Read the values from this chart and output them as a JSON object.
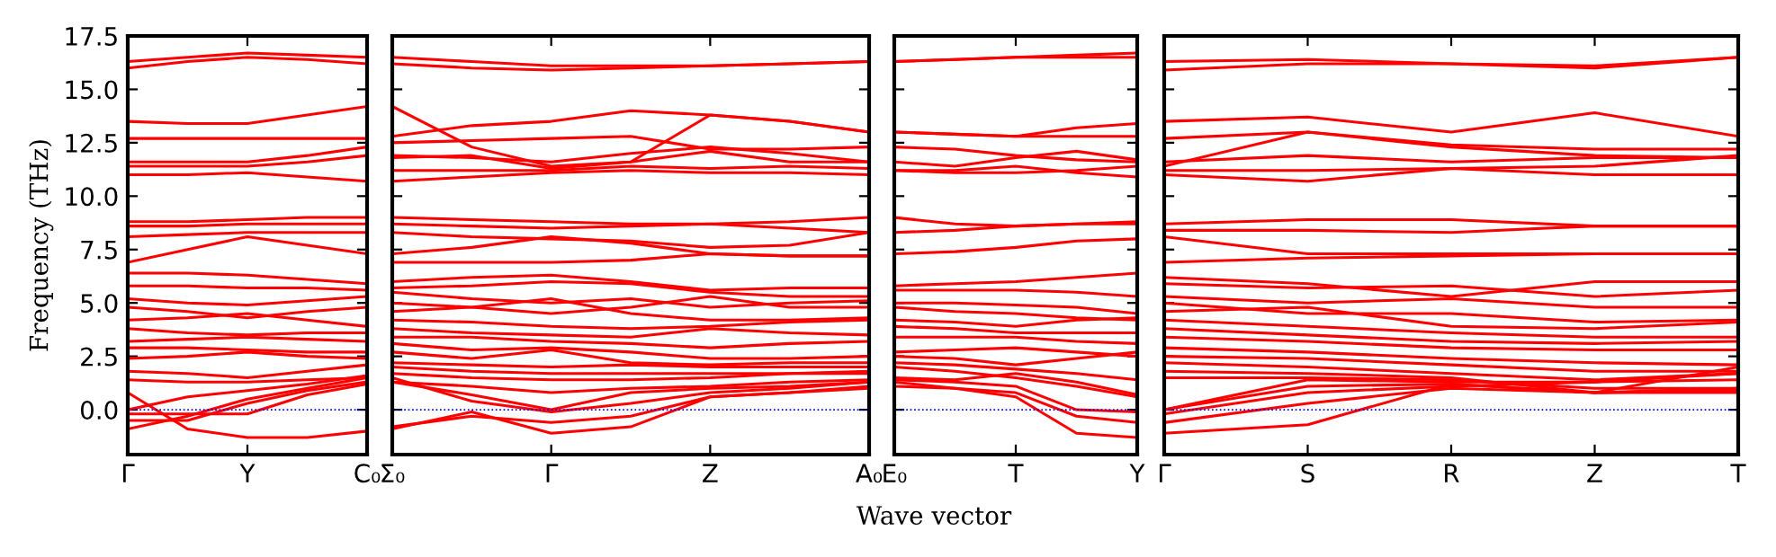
{
  "chart_data": [
    {
      "type": "line",
      "ylabel": "Frequency (THz)",
      "categories": [
        "Γ",
        null,
        "Y",
        null,
        "C₀"
      ],
      "ylim": [
        -2.1,
        17.5
      ],
      "yticks": [
        {
          "value": 0,
          "label": "0.0"
        },
        2.5,
        {
          "value": 5,
          "label": "5.0"
        },
        7.5,
        {
          "value": 10,
          "label": "10.0"
        },
        12.5,
        {
          "value": 15,
          "label": "15.0"
        },
        17.5
      ],
      "grid": false,
      "legend": false,
      "ref_lines": [
        {
          "axis": "y",
          "value": 0,
          "color": "#0000ff",
          "line_style": "dotted"
        }
      ],
      "series": [
        {
          "color": "#ff0000",
          "values": [
            16.3,
            16.5,
            16.7,
            16.6,
            16.5
          ]
        },
        {
          "color": "#ff0000",
          "values": [
            16.0,
            16.3,
            16.5,
            16.4,
            16.2
          ]
        },
        {
          "color": "#ff0000",
          "values": [
            13.5,
            13.4,
            13.4,
            13.8,
            14.2
          ]
        },
        {
          "color": "#ff0000",
          "values": [
            12.7,
            12.7,
            12.7,
            12.7,
            12.7
          ]
        },
        {
          "color": "#ff0000",
          "values": [
            11.6,
            11.6,
            11.6,
            11.9,
            12.3
          ]
        },
        {
          "color": "#ff0000",
          "values": [
            11.4,
            11.4,
            11.4,
            11.6,
            11.9
          ]
        },
        {
          "color": "#ff0000",
          "values": [
            11.0,
            11.0,
            11.1,
            10.9,
            10.7
          ]
        },
        {
          "color": "#ff0000",
          "values": [
            8.8,
            8.8,
            8.9,
            9.0,
            9.0
          ]
        },
        {
          "color": "#ff0000",
          "values": [
            8.6,
            8.6,
            8.7,
            8.7,
            8.7
          ]
        },
        {
          "color": "#ff0000",
          "values": [
            8.1,
            8.2,
            8.3,
            8.3,
            8.3
          ]
        },
        {
          "color": "#ff0000",
          "values": [
            6.9,
            7.5,
            8.1,
            7.7,
            7.3
          ]
        },
        {
          "color": "#ff0000",
          "values": [
            6.4,
            6.4,
            6.3,
            6.1,
            5.9
          ]
        },
        {
          "color": "#ff0000",
          "values": [
            5.8,
            5.8,
            5.7,
            5.7,
            5.6
          ]
        },
        {
          "color": "#ff0000",
          "values": [
            5.2,
            5.0,
            4.9,
            5.1,
            5.3
          ]
        },
        {
          "color": "#ff0000",
          "values": [
            4.8,
            4.6,
            4.3,
            4.6,
            4.8
          ]
        },
        {
          "color": "#ff0000",
          "values": [
            4.2,
            4.3,
            4.5,
            4.2,
            3.9
          ]
        },
        {
          "color": "#ff0000",
          "values": [
            3.8,
            3.6,
            3.5,
            3.6,
            3.6
          ]
        },
        {
          "color": "#ff0000",
          "values": [
            3.2,
            3.3,
            3.4,
            3.3,
            3.2
          ]
        },
        {
          "color": "#ff0000",
          "values": [
            2.9,
            2.9,
            2.8,
            2.7,
            2.7
          ]
        },
        {
          "color": "#ff0000",
          "values": [
            2.4,
            2.5,
            2.7,
            2.5,
            2.4
          ]
        },
        {
          "color": "#ff0000",
          "values": [
            1.8,
            1.7,
            1.5,
            1.8,
            2.1
          ]
        },
        {
          "color": "#ff0000",
          "values": [
            1.4,
            1.3,
            1.3,
            1.4,
            1.5
          ]
        },
        {
          "color": "#ff0000",
          "values": [
            0.8,
            -0.9,
            -1.3,
            -1.3,
            -1.0
          ]
        },
        {
          "color": "#ff0000",
          "values": [
            -0.2,
            -0.2,
            -0.2,
            0.7,
            1.2
          ]
        },
        {
          "color": "#ff0000",
          "values": [
            -0.5,
            -0.5,
            0.3,
            0.9,
            1.3
          ]
        },
        {
          "color": "#ff0000",
          "values": [
            -0.9,
            -0.3,
            0.5,
            1.0,
            1.5
          ]
        },
        {
          "color": "#ff0000",
          "values": [
            0.0,
            0.6,
            0.9,
            1.2,
            1.6
          ]
        }
      ]
    },
    {
      "type": "line",
      "categories": [
        "Σ₀",
        null,
        "Γ",
        null,
        "Z",
        null,
        "A₀"
      ],
      "ylim": [
        -2.1,
        17.5
      ],
      "yticks": [
        0,
        2.5,
        5,
        7.5,
        10,
        12.5,
        15,
        17.5
      ],
      "tick_labels": "x",
      "grid": false,
      "legend": false,
      "ref_lines": [
        {
          "axis": "y",
          "value": 0,
          "color": "#0000ff",
          "line_style": "dotted"
        }
      ],
      "series": [
        {
          "color": "#ff0000",
          "values": [
            16.5,
            16.3,
            16.1,
            16.1,
            16.1,
            16.2,
            16.3
          ]
        },
        {
          "color": "#ff0000",
          "values": [
            16.2,
            16.0,
            15.9,
            16.0,
            16.1,
            16.2,
            16.3
          ]
        },
        {
          "color": "#ff0000",
          "values": [
            14.2,
            12.3,
            11.4,
            11.6,
            13.8,
            13.5,
            13.0
          ]
        },
        {
          "color": "#ff0000",
          "values": [
            12.8,
            13.3,
            13.5,
            14.0,
            13.8,
            13.5,
            13.0
          ]
        },
        {
          "color": "#ff0000",
          "values": [
            12.5,
            12.6,
            12.7,
            12.8,
            12.2,
            12.2,
            12.3
          ]
        },
        {
          "color": "#ff0000",
          "values": [
            11.9,
            11.8,
            11.6,
            12.0,
            12.3,
            12.0,
            11.6
          ]
        },
        {
          "color": "#ff0000",
          "values": [
            11.8,
            11.9,
            11.3,
            11.6,
            12.1,
            11.6,
            11.6
          ]
        },
        {
          "color": "#ff0000",
          "values": [
            11.2,
            11.2,
            11.2,
            11.4,
            11.3,
            11.4,
            11.3
          ]
        },
        {
          "color": "#ff0000",
          "values": [
            10.7,
            10.9,
            11.1,
            11.2,
            11.1,
            11.1,
            11.0
          ]
        },
        {
          "color": "#ff0000",
          "values": [
            9.0,
            8.9,
            8.8,
            8.7,
            8.7,
            8.8,
            9.0
          ]
        },
        {
          "color": "#ff0000",
          "values": [
            8.7,
            8.6,
            8.5,
            8.6,
            8.7,
            8.5,
            8.3
          ]
        },
        {
          "color": "#ff0000",
          "values": [
            8.3,
            8.1,
            8.0,
            7.9,
            7.6,
            7.7,
            8.3
          ]
        },
        {
          "color": "#ff0000",
          "values": [
            7.3,
            7.6,
            8.1,
            7.8,
            7.3,
            7.2,
            7.2
          ]
        },
        {
          "color": "#ff0000",
          "values": [
            6.9,
            6.9,
            6.9,
            7.0,
            7.3,
            7.2,
            7.2
          ]
        },
        {
          "color": "#ff0000",
          "values": [
            6.0,
            6.2,
            6.3,
            6.0,
            5.6,
            5.7,
            5.7
          ]
        },
        {
          "color": "#ff0000",
          "values": [
            5.7,
            5.8,
            6.0,
            5.9,
            5.5,
            5.3,
            5.3
          ]
        },
        {
          "color": "#ff0000",
          "values": [
            5.5,
            5.2,
            5.0,
            5.2,
            4.8,
            5.0,
            5.1
          ]
        },
        {
          "color": "#ff0000",
          "values": [
            5.0,
            4.8,
            4.5,
            4.8,
            5.3,
            4.8,
            4.8
          ]
        },
        {
          "color": "#ff0000",
          "values": [
            4.6,
            4.8,
            5.2,
            4.5,
            4.2,
            4.2,
            4.3
          ]
        },
        {
          "color": "#ff0000",
          "values": [
            4.2,
            4.1,
            3.9,
            3.8,
            3.9,
            4.1,
            4.2
          ]
        },
        {
          "color": "#ff0000",
          "values": [
            3.8,
            3.6,
            3.5,
            3.4,
            3.8,
            3.6,
            3.5
          ]
        },
        {
          "color": "#ff0000",
          "values": [
            3.4,
            3.4,
            3.2,
            3.1,
            2.9,
            3.1,
            3.2
          ]
        },
        {
          "color": "#ff0000",
          "values": [
            3.1,
            2.8,
            2.9,
            2.7,
            2.4,
            2.4,
            2.5
          ]
        },
        {
          "color": "#ff0000",
          "values": [
            2.7,
            2.4,
            2.8,
            2.2,
            2.1,
            2.2,
            2.2
          ]
        },
        {
          "color": "#ff0000",
          "values": [
            2.2,
            2.1,
            2.0,
            2.1,
            2.0,
            2.0,
            2.0
          ]
        },
        {
          "color": "#ff0000",
          "values": [
            2.0,
            1.8,
            1.7,
            1.7,
            1.7,
            1.7,
            1.8
          ]
        },
        {
          "color": "#ff0000",
          "values": [
            1.7,
            1.5,
            1.4,
            1.4,
            1.5,
            1.7,
            1.7
          ]
        },
        {
          "color": "#ff0000",
          "values": [
            1.3,
            1.1,
            0.8,
            1.0,
            1.1,
            1.3,
            1.4
          ]
        },
        {
          "color": "#ff0000",
          "values": [
            1.3,
            0.7,
            0.0,
            0.8,
            1.0,
            1.1,
            1.3
          ]
        },
        {
          "color": "#ff0000",
          "values": [
            1.5,
            0.4,
            -0.1,
            0.3,
            0.8,
            1.0,
            1.3
          ]
        },
        {
          "color": "#ff0000",
          "values": [
            -0.8,
            -0.3,
            -0.6,
            -0.3,
            0.6,
            0.8,
            1.1
          ]
        },
        {
          "color": "#ff0000",
          "values": [
            -0.9,
            -0.1,
            -1.1,
            -0.8,
            0.6,
            0.8,
            1.0
          ]
        }
      ]
    },
    {
      "type": "line",
      "xlabel": "Wave vector",
      "categories": [
        "E₀",
        null,
        "T",
        null,
        "Y"
      ],
      "ylim": [
        -2.1,
        17.5
      ],
      "yticks": [
        0,
        2.5,
        5,
        7.5,
        10,
        12.5,
        15,
        17.5
      ],
      "tick_labels": "x",
      "grid": false,
      "legend": false,
      "ref_lines": [
        {
          "axis": "y",
          "value": 0,
          "color": "#0000ff",
          "line_style": "dotted"
        }
      ],
      "series": [
        {
          "color": "#ff0000",
          "values": [
            16.3,
            16.4,
            16.5,
            16.6,
            16.7
          ]
        },
        {
          "color": "#ff0000",
          "values": [
            16.3,
            16.4,
            16.5,
            16.5,
            16.5
          ]
        },
        {
          "color": "#ff0000",
          "values": [
            13.0,
            12.9,
            12.8,
            13.2,
            13.4
          ]
        },
        {
          "color": "#ff0000",
          "values": [
            13.0,
            12.9,
            12.8,
            12.8,
            12.8
          ]
        },
        {
          "color": "#ff0000",
          "values": [
            12.3,
            12.2,
            11.9,
            11.7,
            11.6
          ]
        },
        {
          "color": "#ff0000",
          "values": [
            11.6,
            11.4,
            11.8,
            12.1,
            11.7
          ]
        },
        {
          "color": "#ff0000",
          "values": [
            11.2,
            11.1,
            11.1,
            11.2,
            11.4
          ]
        },
        {
          "color": "#ff0000",
          "values": [
            11.2,
            11.2,
            11.4,
            11.1,
            10.9
          ]
        },
        {
          "color": "#ff0000",
          "values": [
            9.0,
            8.7,
            8.6,
            8.7,
            8.8
          ]
        },
        {
          "color": "#ff0000",
          "values": [
            8.3,
            8.4,
            8.6,
            8.7,
            8.7
          ]
        },
        {
          "color": "#ff0000",
          "values": [
            7.3,
            7.4,
            7.6,
            7.9,
            8.0
          ]
        },
        {
          "color": "#ff0000",
          "values": [
            5.8,
            5.9,
            6.0,
            6.2,
            6.4
          ]
        },
        {
          "color": "#ff0000",
          "values": [
            5.6,
            5.6,
            5.6,
            5.5,
            5.3
          ]
        },
        {
          "color": "#ff0000",
          "values": [
            5.0,
            5.0,
            4.9,
            4.8,
            4.5
          ]
        },
        {
          "color": "#ff0000",
          "values": [
            4.8,
            4.6,
            4.5,
            4.3,
            4.2
          ]
        },
        {
          "color": "#ff0000",
          "values": [
            4.2,
            4.1,
            3.9,
            4.2,
            4.3
          ]
        },
        {
          "color": "#ff0000",
          "values": [
            3.9,
            3.8,
            3.6,
            3.6,
            3.6
          ]
        },
        {
          "color": "#ff0000",
          "values": [
            3.4,
            3.4,
            3.4,
            3.2,
            3.1
          ]
        },
        {
          "color": "#ff0000",
          "values": [
            2.7,
            2.8,
            2.9,
            2.7,
            2.5
          ]
        },
        {
          "color": "#ff0000",
          "values": [
            2.5,
            2.4,
            2.1,
            2.4,
            2.7
          ]
        },
        {
          "color": "#ff0000",
          "values": [
            2.2,
            2.1,
            1.9,
            1.7,
            1.4
          ]
        },
        {
          "color": "#ff0000",
          "values": [
            2.0,
            1.8,
            1.5,
            1.1,
            0.6
          ]
        },
        {
          "color": "#ff0000",
          "values": [
            1.5,
            1.4,
            1.7,
            1.3,
            0.7
          ]
        },
        {
          "color": "#ff0000",
          "values": [
            1.4,
            1.3,
            1.1,
            0.0,
            -0.1
          ]
        },
        {
          "color": "#ff0000",
          "values": [
            1.1,
            1.0,
            0.8,
            -0.3,
            -0.6
          ]
        },
        {
          "color": "#ff0000",
          "values": [
            1.3,
            1.0,
            0.6,
            -1.1,
            -1.3
          ]
        }
      ]
    },
    {
      "type": "line",
      "categories": [
        "Γ",
        "S",
        "R",
        "Z",
        "T"
      ],
      "ylim": [
        -2.1,
        17.5
      ],
      "yticks": [
        0,
        2.5,
        5,
        7.5,
        10,
        12.5,
        15,
        17.5
      ],
      "tick_labels": "x",
      "grid": false,
      "legend": false,
      "ref_lines": [
        {
          "axis": "y",
          "value": 0,
          "color": "#0000ff",
          "line_style": "dotted"
        }
      ],
      "series": [
        {
          "color": "#ff0000",
          "values": [
            16.3,
            16.4,
            16.2,
            16.1,
            16.5
          ]
        },
        {
          "color": "#ff0000",
          "values": [
            15.9,
            16.2,
            16.2,
            16.0,
            16.5
          ]
        },
        {
          "color": "#ff0000",
          "values": [
            13.5,
            13.7,
            13.0,
            13.9,
            12.8
          ]
        },
        {
          "color": "#ff0000",
          "values": [
            12.7,
            13.0,
            12.4,
            12.2,
            12.2
          ]
        },
        {
          "color": "#ff0000",
          "values": [
            11.4,
            13.0,
            12.3,
            11.9,
            11.8
          ]
        },
        {
          "color": "#ff0000",
          "values": [
            11.6,
            11.9,
            11.6,
            11.8,
            11.8
          ]
        },
        {
          "color": "#ff0000",
          "values": [
            11.2,
            11.2,
            11.3,
            11.0,
            11.0
          ]
        },
        {
          "color": "#ff0000",
          "values": [
            11.0,
            10.7,
            11.3,
            11.4,
            11.9
          ]
        },
        {
          "color": "#ff0000",
          "values": [
            8.7,
            8.9,
            8.9,
            8.6,
            8.6
          ]
        },
        {
          "color": "#ff0000",
          "values": [
            8.4,
            8.4,
            8.3,
            8.6,
            8.6
          ]
        },
        {
          "color": "#ff0000",
          "values": [
            8.1,
            7.3,
            7.3,
            7.3,
            7.3
          ]
        },
        {
          "color": "#ff0000",
          "values": [
            6.9,
            7.1,
            7.2,
            7.3,
            7.3
          ]
        },
        {
          "color": "#ff0000",
          "values": [
            6.2,
            5.9,
            5.3,
            6.0,
            6.0
          ]
        },
        {
          "color": "#ff0000",
          "values": [
            5.9,
            5.7,
            5.8,
            5.3,
            5.6
          ]
        },
        {
          "color": "#ff0000",
          "values": [
            5.3,
            5.0,
            5.2,
            4.8,
            4.8
          ]
        },
        {
          "color": "#ff0000",
          "values": [
            5.0,
            4.5,
            4.5,
            4.1,
            4.2
          ]
        },
        {
          "color": "#ff0000",
          "values": [
            4.6,
            4.8,
            3.9,
            3.8,
            4.1
          ]
        },
        {
          "color": "#ff0000",
          "values": [
            4.2,
            3.9,
            3.6,
            3.4,
            3.4
          ]
        },
        {
          "color": "#ff0000",
          "values": [
            3.8,
            3.5,
            3.2,
            3.1,
            3.2
          ]
        },
        {
          "color": "#ff0000",
          "values": [
            3.4,
            3.2,
            2.9,
            2.8,
            2.8
          ]
        },
        {
          "color": "#ff0000",
          "values": [
            2.9,
            2.7,
            2.4,
            2.2,
            2.1
          ]
        },
        {
          "color": "#ff0000",
          "values": [
            2.5,
            2.4,
            2.1,
            1.8,
            1.8
          ]
        },
        {
          "color": "#ff0000",
          "values": [
            2.2,
            2.0,
            1.7,
            1.4,
            1.7
          ]
        },
        {
          "color": "#ff0000",
          "values": [
            1.8,
            1.7,
            1.5,
            0.8,
            2.0
          ]
        },
        {
          "color": "#ff0000",
          "values": [
            1.5,
            1.5,
            1.4,
            1.0,
            1.0
          ]
        },
        {
          "color": "#ff0000",
          "values": [
            0.0,
            1.1,
            1.2,
            0.8,
            1.0
          ]
        },
        {
          "color": "#ff0000",
          "values": [
            0.0,
            1.4,
            1.3,
            1.3,
            1.7
          ]
        },
        {
          "color": "#ff0000",
          "values": [
            -0.2,
            0.8,
            1.1,
            1.3,
            1.4
          ]
        },
        {
          "color": "#ff0000",
          "values": [
            -1.1,
            -0.7,
            1.2,
            0.8,
            0.8
          ]
        },
        {
          "color": "#ff0000",
          "values": [
            -0.6,
            0.3,
            1.0,
            0.8,
            0.9
          ]
        }
      ]
    }
  ]
}
